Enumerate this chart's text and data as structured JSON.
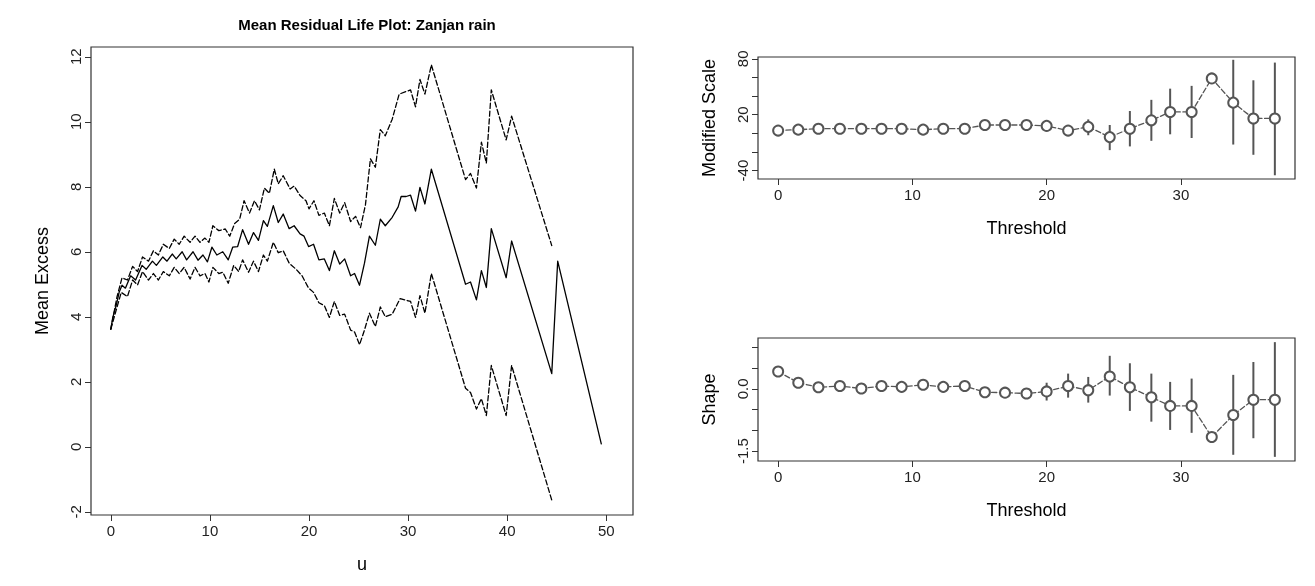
{
  "chart_data": [
    {
      "type": "line",
      "title": "Mean Residual Life Plot: Zanjan rain",
      "xlabel": "u",
      "ylabel": "Mean Excess",
      "xlim": [
        -2,
        52.7
      ],
      "xticks": [
        0,
        10,
        20,
        30,
        40,
        50
      ],
      "ylim": [
        -2.1,
        12.3
      ],
      "yticks": [
        -2,
        0,
        2,
        4,
        6,
        8,
        10,
        12
      ],
      "grid": false,
      "marker": "none",
      "series": [
        {
          "color": "#000000",
          "line_style": "solid",
          "x": [
            0,
            0.2,
            0.55,
            0.84,
            1.13,
            1.47,
            2.0,
            2.5,
            3.15,
            3.57,
            4.2,
            4.6,
            5.25,
            5.67,
            6.2,
            6.6,
            7.2,
            7.65,
            8.3,
            8.8,
            9.3,
            9.75,
            10.2,
            10.7,
            11.3,
            11.85,
            12.3,
            12.8,
            13.3,
            13.9,
            14.4,
            14.9,
            15.4,
            15.8,
            16.4,
            16.9,
            17.4,
            18.0,
            18.5,
            19.1,
            19.5,
            19.96,
            20.46,
            21.0,
            21.55,
            22.06,
            22.56,
            23.1,
            23.6,
            24.2,
            24.6,
            25.1,
            25.6,
            26.1,
            26.7,
            27.2,
            27.7,
            28.4,
            29.0,
            29.3,
            29.8,
            30.25,
            30.75,
            31.2,
            31.7,
            32.35,
            35.8,
            36.3,
            36.9,
            37.4,
            37.9,
            38.4,
            39.9,
            40.45,
            44.5,
            45.1,
            49.5
          ],
          "values": [
            3.62,
            3.98,
            4.36,
            4.75,
            4.97,
            4.88,
            5.26,
            5.13,
            5.58,
            5.46,
            5.71,
            5.58,
            5.84,
            5.71,
            5.93,
            5.78,
            6.0,
            5.75,
            6.0,
            5.74,
            5.9,
            5.69,
            6.14,
            5.9,
            6.0,
            5.75,
            6.14,
            6.16,
            6.68,
            6.23,
            6.59,
            6.35,
            6.96,
            6.78,
            7.42,
            6.9,
            7.16,
            6.71,
            6.8,
            6.55,
            6.48,
            6.16,
            6.23,
            5.75,
            5.78,
            5.42,
            6.03,
            5.62,
            5.78,
            5.26,
            5.33,
            4.97,
            5.65,
            6.48,
            6.2,
            7.0,
            6.8,
            7.06,
            7.38,
            7.7,
            7.7,
            7.74,
            7.25,
            7.98,
            7.47,
            8.54,
            5.0,
            5.07,
            4.52,
            5.42,
            4.9,
            6.71,
            5.2,
            6.33,
            2.25,
            5.71,
            0.09
          ]
        },
        {
          "color": "#000000",
          "line_style": "dashed",
          "x": [
            0,
            0.63,
            1.13,
            1.68,
            2.2,
            2.7,
            3.2,
            3.8,
            4.3,
            4.8,
            5.3,
            5.9,
            6.4,
            6.9,
            7.4,
            8.0,
            8.5,
            9.0,
            9.5,
            9.9,
            10.3,
            10.9,
            11.55,
            12.0,
            12.5,
            13.0,
            13.45,
            14.0,
            14.5,
            15.0,
            15.5,
            16.0,
            16.5,
            16.9,
            17.4,
            18.1,
            18.5,
            19.1,
            19.7,
            20.0,
            20.5,
            21.0,
            21.55,
            22.06,
            22.56,
            23.1,
            23.6,
            24.2,
            24.7,
            25.2,
            25.7,
            26.2,
            26.7,
            27.2,
            27.7,
            28.4,
            29.1,
            30.25,
            30.75,
            31.2,
            31.7,
            32.35,
            35.8,
            36.3,
            36.9,
            37.4,
            37.9,
            38.4,
            39.9,
            40.45,
            44.5
          ],
          "values": [
            3.62,
            4.62,
            5.2,
            5.13,
            5.55,
            5.39,
            5.84,
            5.71,
            6.03,
            5.9,
            6.23,
            6.1,
            6.39,
            6.23,
            6.48,
            6.29,
            6.48,
            6.29,
            6.42,
            6.29,
            6.8,
            6.65,
            6.7,
            6.48,
            6.87,
            7.0,
            7.57,
            7.19,
            7.57,
            7.29,
            7.96,
            7.8,
            8.54,
            8.09,
            8.34,
            7.93,
            8.02,
            7.73,
            7.57,
            7.32,
            7.57,
            7.12,
            7.19,
            6.8,
            7.64,
            7.19,
            7.51,
            6.93,
            7.09,
            6.74,
            7.45,
            8.86,
            8.6,
            9.76,
            9.57,
            10.08,
            10.85,
            10.98,
            10.46,
            11.3,
            10.85,
            11.75,
            8.22,
            8.41,
            7.96,
            9.37,
            8.73,
            10.98,
            9.44,
            10.17,
            6.19
          ]
        },
        {
          "color": "#000000",
          "line_style": "dashed",
          "x": [
            0,
            0.63,
            1.05,
            1.68,
            2.2,
            2.7,
            3.2,
            3.8,
            4.3,
            4.8,
            5.3,
            5.9,
            6.4,
            6.9,
            7.4,
            8.0,
            8.5,
            9.0,
            9.5,
            9.9,
            10.3,
            10.9,
            11.3,
            11.85,
            12.4,
            12.9,
            13.3,
            13.9,
            14.4,
            14.9,
            15.4,
            15.8,
            16.4,
            16.9,
            17.4,
            18.0,
            18.7,
            19.3,
            19.96,
            20.46,
            21.0,
            21.55,
            22.06,
            22.56,
            23.1,
            23.6,
            24.2,
            24.6,
            25.1,
            25.6,
            26.1,
            26.7,
            27.2,
            27.7,
            28.4,
            29.2,
            30.25,
            30.75,
            31.2,
            31.7,
            32.35,
            35.8,
            36.3,
            36.9,
            37.4,
            37.9,
            38.4,
            39.9,
            40.45,
            44.5
          ],
          "values": [
            3.62,
            4.3,
            4.75,
            4.62,
            5.13,
            4.98,
            5.39,
            5.13,
            5.33,
            5.13,
            5.39,
            5.26,
            5.52,
            5.33,
            5.52,
            5.16,
            5.52,
            5.26,
            5.33,
            5.07,
            5.52,
            5.33,
            5.37,
            5.03,
            5.58,
            5.39,
            5.75,
            5.37,
            5.71,
            5.39,
            5.9,
            5.71,
            6.29,
            5.97,
            6.03,
            5.65,
            5.46,
            5.26,
            4.88,
            4.75,
            4.43,
            4.34,
            3.98,
            4.47,
            4.04,
            4.08,
            3.59,
            3.53,
            3.14,
            3.59,
            4.11,
            3.7,
            4.3,
            4.0,
            4.08,
            4.56,
            4.47,
            3.98,
            4.65,
            4.11,
            5.33,
            1.8,
            1.67,
            1.16,
            1.48,
            0.96,
            2.5,
            0.96,
            2.5,
            -1.64
          ]
        }
      ]
    },
    {
      "type": "line",
      "xlabel": "Threshold",
      "ylabel": "Modified Scale",
      "xlim": [
        -1.5,
        38.5
      ],
      "xticks": [
        0,
        10,
        20,
        30
      ],
      "ylim": [
        -49,
        82
      ],
      "yticks": [
        -40,
        {
          "value": -20,
          "label": null
        },
        {
          "value": 0,
          "label": null
        },
        20,
        {
          "value": 40,
          "label": null
        },
        {
          "value": 60,
          "label": null
        },
        80
      ],
      "grid": false,
      "marker": "circle",
      "line_style": "dashed",
      "x": [
        0,
        1.5,
        3.0,
        4.6,
        6.2,
        7.7,
        9.2,
        10.8,
        12.3,
        13.9,
        15.4,
        16.9,
        18.5,
        20.0,
        21.6,
        23.1,
        24.7,
        26.2,
        27.8,
        29.2,
        30.8,
        32.3,
        33.9,
        35.4,
        37.0
      ],
      "series": [
        {
          "color": "#555555",
          "values": [
            3,
            4,
            5,
            5,
            5,
            5,
            5,
            4,
            5,
            5,
            9,
            9,
            9,
            8,
            3,
            7,
            -4,
            5,
            14,
            23,
            23,
            59,
            33,
            16,
            16
          ],
          "errors": [
            null,
            null,
            null,
            null,
            null,
            null,
            null,
            null,
            null,
            null,
            null,
            null,
            null,
            null,
            [
              -2,
              8
            ],
            [
              -2,
              15
            ],
            [
              -18,
              9
            ],
            [
              -14,
              24
            ],
            [
              -8,
              36
            ],
            [
              -1,
              48
            ],
            [
              -5,
              51
            ],
            null,
            [
              -12,
              79
            ],
            [
              -23,
              57
            ],
            [
              -45,
              76
            ]
          ]
        }
      ]
    },
    {
      "type": "line",
      "xlabel": "Threshold",
      "ylabel": "Shape",
      "xlim": [
        -1.5,
        38.5
      ],
      "xticks": [
        0,
        10,
        20,
        30
      ],
      "ylim": [
        -1.74,
        1.23
      ],
      "yticks": [
        {
          "value": 1.0,
          "label": null
        },
        {
          "value": 0.5,
          "label": null
        },
        {
          "value": 0,
          "label": "0.0"
        },
        {
          "value": -0.5,
          "label": null
        },
        {
          "value": -1.0,
          "label": null
        },
        -1.5
      ],
      "grid": false,
      "marker": "circle",
      "line_style": "dashed",
      "x": [
        0,
        1.5,
        3.0,
        4.6,
        6.2,
        7.7,
        9.2,
        10.8,
        12.3,
        13.9,
        15.4,
        16.9,
        18.5,
        20.0,
        21.6,
        23.1,
        24.7,
        26.2,
        27.8,
        29.2,
        30.8,
        32.3,
        33.9,
        35.4,
        37.0
      ],
      "series": [
        {
          "color": "#555555",
          "values": [
            0.42,
            0.15,
            0.04,
            0.07,
            0.01,
            0.07,
            0.05,
            0.1,
            0.05,
            0.07,
            -0.08,
            -0.09,
            -0.11,
            -0.06,
            0.07,
            -0.03,
            0.3,
            0.04,
            -0.2,
            -0.41,
            -0.41,
            -1.16,
            -0.63,
            -0.26,
            -0.26
          ],
          "errors": [
            null,
            null,
            null,
            null,
            null,
            null,
            null,
            null,
            null,
            null,
            null,
            null,
            null,
            [
              -0.28,
              0.15
            ],
            [
              -0.21,
              0.37
            ],
            [
              -0.33,
              0.29
            ],
            [
              -0.16,
              0.8
            ],
            [
              -0.53,
              0.62
            ],
            [
              -0.79,
              0.37
            ],
            [
              -0.99,
              0.17
            ],
            [
              -1.06,
              0.25
            ],
            null,
            [
              -1.59,
              0.34
            ],
            [
              -1.19,
              0.65
            ],
            [
              -1.64,
              1.13
            ]
          ]
        }
      ]
    }
  ]
}
